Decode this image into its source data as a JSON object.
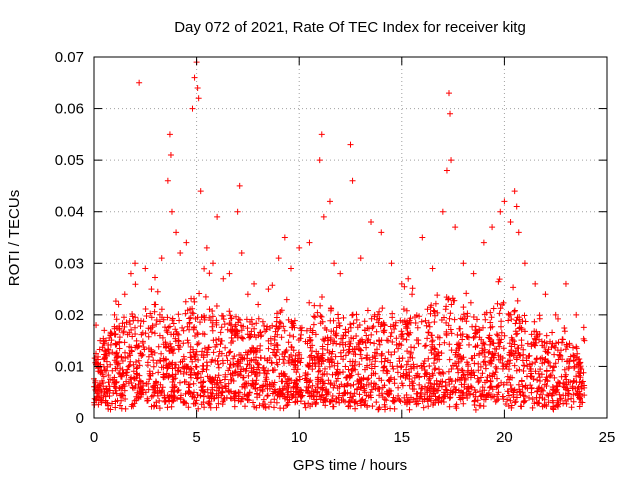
{
  "chart_data": {
    "type": "scatter",
    "title": "Day 072 of 2021, Rate Of TEC Index for receiver kitg",
    "xlabel": "GPS time / hours",
    "ylabel": "ROTI / TECUs",
    "xlim": [
      0,
      25
    ],
    "ylim": [
      0,
      0.07
    ],
    "x_ticks": [
      0,
      5,
      10,
      15,
      20,
      25
    ],
    "x_tick_labels": [
      "0",
      "5",
      "10",
      "15",
      "20",
      "25"
    ],
    "y_ticks": [
      0,
      0.01,
      0.02,
      0.03,
      0.04,
      0.05,
      0.06,
      0.07
    ],
    "y_tick_labels": [
      "0",
      "0.01",
      "0.02",
      "0.03",
      "0.04",
      "0.05",
      "0.06",
      "0.07"
    ],
    "grid": true,
    "marker": "+",
    "series": [
      {
        "name": "ROTI",
        "color": "#ff0000",
        "x": [
          0.1,
          0.3,
          0.5,
          0.8,
          1.0,
          1.2,
          1.5,
          1.8,
          2.0,
          2.2,
          2.5,
          2.8,
          3.0,
          3.3,
          3.6,
          3.7,
          3.75,
          3.8,
          4.0,
          4.2,
          4.5,
          4.8,
          4.9,
          5.0,
          5.05,
          5.1,
          5.2,
          5.5,
          5.8,
          6.0,
          6.3,
          6.6,
          7.0,
          7.1,
          7.2,
          7.5,
          7.8,
          8.0,
          8.5,
          9.0,
          9.3,
          9.6,
          10.0,
          10.5,
          11.0,
          11.1,
          11.2,
          11.5,
          11.7,
          12.0,
          12.5,
          12.6,
          13.0,
          13.5,
          14.0,
          14.5,
          15.0,
          15.5,
          16.0,
          16.5,
          17.0,
          17.2,
          17.3,
          17.35,
          17.4,
          17.6,
          18.0,
          18.5,
          19.0,
          19.4,
          19.8,
          20.0,
          20.3,
          20.5,
          20.6,
          20.7,
          21.0,
          21.5,
          22.0,
          22.5,
          23.0,
          23.5,
          23.9
        ],
        "y": [
          0.018,
          0.015,
          0.017,
          0.016,
          0.02,
          0.022,
          0.024,
          0.028,
          0.03,
          0.065,
          0.029,
          0.025,
          0.022,
          0.031,
          0.046,
          0.055,
          0.051,
          0.04,
          0.036,
          0.032,
          0.034,
          0.06,
          0.066,
          0.069,
          0.064,
          0.062,
          0.044,
          0.033,
          0.03,
          0.039,
          0.027,
          0.028,
          0.04,
          0.045,
          0.032,
          0.024,
          0.026,
          0.022,
          0.025,
          0.031,
          0.035,
          0.029,
          0.033,
          0.034,
          0.05,
          0.055,
          0.039,
          0.042,
          0.03,
          0.028,
          0.053,
          0.046,
          0.031,
          0.038,
          0.036,
          0.03,
          0.026,
          0.024,
          0.035,
          0.029,
          0.04,
          0.048,
          0.063,
          0.059,
          0.05,
          0.037,
          0.03,
          0.028,
          0.034,
          0.037,
          0.04,
          0.042,
          0.038,
          0.044,
          0.041,
          0.036,
          0.03,
          0.026,
          0.024,
          0.02,
          0.026,
          0.02,
          0.015
        ]
      }
    ]
  }
}
